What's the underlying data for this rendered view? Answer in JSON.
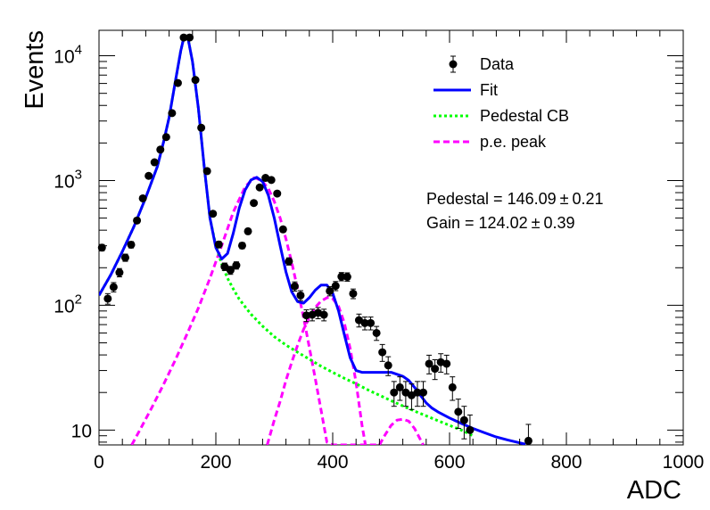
{
  "chart_data": {
    "type": "scatter",
    "title": "",
    "xlabel": "ADC",
    "ylabel": "Events",
    "xlim": [
      0,
      1000
    ],
    "ylim": [
      7.6,
      16000
    ],
    "ylog": true,
    "grid": false,
    "legend_placement": "top-right",
    "x_ticks": [
      {
        "value": 0,
        "label": "0"
      },
      {
        "value": 200,
        "label": "200"
      },
      {
        "value": 400,
        "label": "400"
      },
      {
        "value": 600,
        "label": "600"
      },
      {
        "value": 800,
        "label": "800"
      },
      {
        "value": 1000,
        "label": "1000"
      }
    ],
    "y_ticks": [
      {
        "value": 10,
        "label": "10"
      },
      {
        "value": 100,
        "label": "10",
        "sup": "2"
      },
      {
        "value": 1000,
        "label": "10",
        "sup": "3"
      },
      {
        "value": 10000,
        "label": "10",
        "sup": "4"
      }
    ],
    "legend": [
      {
        "name": "Data",
        "style": "marker",
        "color": "#000000"
      },
      {
        "name": "Fit",
        "style": "solid",
        "color": "#0000ff"
      },
      {
        "name": "Pedestal CB",
        "style": "dotted",
        "color": "#00ff00"
      },
      {
        "name": "p.e. peak",
        "style": "dashed",
        "color": "#ff00ff"
      }
    ],
    "annotations": [
      {
        "label": "Pedestal = 146.09",
        "pm": "±",
        "err": "0.21"
      },
      {
        "label": "Gain = 124.02",
        "pm": "±",
        "err": "0.39"
      }
    ],
    "series": [
      {
        "name": "Data",
        "style": "points",
        "color": "#000000",
        "x": [
          5,
          15,
          25,
          35,
          45,
          55,
          65,
          75,
          85,
          95,
          105,
          115,
          125,
          135,
          145,
          155,
          165,
          175,
          185,
          195,
          205,
          215,
          225,
          235,
          245,
          255,
          265,
          275,
          285,
          295,
          305,
          315,
          325,
          335,
          345,
          355,
          365,
          375,
          385,
          395,
          405,
          415,
          425,
          435,
          445,
          455,
          465,
          475,
          485,
          495,
          505,
          515,
          525,
          535,
          545,
          555,
          565,
          575,
          585,
          595,
          605,
          615,
          625,
          635,
          735
        ],
        "y": [
          290,
          113,
          140,
          183,
          241,
          306,
          478,
          720,
          1090,
          1400,
          1770,
          2230,
          3470,
          6050,
          14000,
          14000,
          6400,
          2650,
          1190,
          542,
          307,
          204,
          191,
          209,
          301,
          392,
          660,
          880,
          1050,
          1010,
          786,
          406,
          225,
          142,
          120,
          83,
          84,
          87,
          84,
          130,
          143,
          170,
          169,
          124,
          76,
          72,
          72,
          60,
          42,
          33,
          20,
          22,
          20,
          19,
          20,
          20,
          34,
          31,
          35,
          34,
          22,
          14,
          12,
          10,
          8.2
        ],
        "yerr": [
          17,
          11,
          12,
          14,
          16,
          18,
          22,
          27,
          33,
          37,
          42,
          47,
          59,
          78,
          118,
          118,
          80,
          51,
          34,
          23,
          18,
          14,
          14,
          14,
          17,
          20,
          26,
          30,
          32,
          32,
          28,
          20,
          15,
          12,
          11,
          9,
          9,
          9,
          9,
          11,
          12,
          13,
          13,
          11,
          9,
          8.5,
          8.5,
          7.7,
          6.5,
          5.7,
          4.5,
          4.7,
          4.5,
          4.4,
          4.5,
          4.5,
          5.8,
          5.6,
          5.9,
          5.8,
          4.7,
          3.7,
          3.5,
          3.2,
          2.9
        ]
      },
      {
        "name": "Fit",
        "style": "solid",
        "color": "#0000ff",
        "x": [
          0,
          20,
          40,
          60,
          80,
          100,
          110,
          120,
          130,
          140,
          146,
          152,
          160,
          170,
          180,
          190,
          200,
          210,
          220,
          230,
          240,
          250,
          260,
          270,
          280,
          290,
          300,
          310,
          320,
          330,
          340,
          350,
          360,
          370,
          380,
          390,
          400,
          410,
          420,
          430,
          440,
          450,
          460,
          470,
          480,
          490,
          500,
          510,
          520,
          530,
          540,
          550,
          560,
          570,
          580,
          600,
          620,
          640,
          660,
          680,
          700,
          730
        ],
        "y": [
          120,
          175,
          270,
          430,
          730,
          1300,
          2000,
          3200,
          6000,
          11000,
          14500,
          14000,
          9000,
          3800,
          1300,
          500,
          290,
          235,
          260,
          380,
          600,
          840,
          1010,
          1060,
          980,
          760,
          500,
          300,
          185,
          128,
          107,
          104,
          115,
          132,
          145,
          145,
          125,
          90,
          58,
          38,
          30,
          29,
          29,
          29,
          29,
          29,
          29,
          28,
          27,
          25,
          22,
          19,
          16.5,
          15,
          14,
          12.5,
          11.3,
          10.3,
          9.5,
          8.8,
          8.3,
          7.7
        ]
      },
      {
        "name": "Pedestal CB",
        "style": "dotted",
        "color": "#00ff00",
        "x": [
          0,
          20,
          40,
          60,
          80,
          100,
          110,
          120,
          130,
          140,
          146,
          152,
          160,
          170,
          180,
          190,
          200,
          210,
          220,
          230,
          240,
          260,
          280,
          300,
          320,
          340,
          360,
          380,
          400,
          420,
          440,
          460,
          480,
          500,
          520,
          540,
          560,
          580,
          600,
          620,
          640
        ],
        "y": [
          120,
          175,
          270,
          430,
          730,
          1300,
          2000,
          3200,
          6000,
          11000,
          14500,
          14000,
          9000,
          3800,
          1300,
          500,
          300,
          215,
          165,
          135,
          112,
          85,
          68,
          56,
          48,
          42,
          37,
          32.5,
          29,
          26,
          23.5,
          21,
          19,
          17.2,
          15.6,
          14.2,
          13,
          11.9,
          10.9,
          10,
          9
        ]
      },
      {
        "name": "p.e. peak 1",
        "style": "dashed",
        "color": "#ff00ff",
        "x": [
          56,
          70,
          90,
          110,
          130,
          150,
          170,
          190,
          210,
          230,
          250,
          265,
          270,
          280,
          290,
          300,
          310,
          320,
          330,
          340,
          350,
          360,
          370,
          380,
          390,
          400,
          410,
          420,
          430,
          440,
          450,
          460,
          470,
          480
        ],
        "y": [
          7.6,
          10,
          15,
          23,
          36,
          58,
          95,
          165,
          300,
          560,
          890,
          1050,
          1040,
          980,
          860,
          680,
          500,
          340,
          220,
          135,
          80,
          46,
          26,
          14.5,
          8,
          7.6,
          7.6,
          7.6,
          7.6,
          7.6,
          7.6,
          7.6,
          7.6,
          7.6
        ]
      },
      {
        "name": "p.e. peak 2",
        "style": "dashed",
        "color": "#ff00ff",
        "x": [
          288,
          300,
          310,
          320,
          330,
          340,
          350,
          360,
          370,
          380,
          390,
          395,
          400,
          410,
          420,
          430,
          440,
          450,
          456
        ],
        "y": [
          7.6,
          12,
          17,
          25,
          35,
          48,
          64,
          80,
          96,
          108,
          115,
          116,
          113,
          98,
          72,
          45,
          24,
          11,
          7.6
        ]
      },
      {
        "name": "p.e. peak 3",
        "style": "dashed",
        "color": "#ff00ff",
        "x": [
          480,
          490,
          500,
          510,
          520,
          530,
          540,
          550,
          555
        ],
        "y": [
          7.6,
          9.2,
          10.9,
          12,
          12.2,
          11.8,
          10.3,
          8.4,
          7.6
        ]
      }
    ]
  }
}
